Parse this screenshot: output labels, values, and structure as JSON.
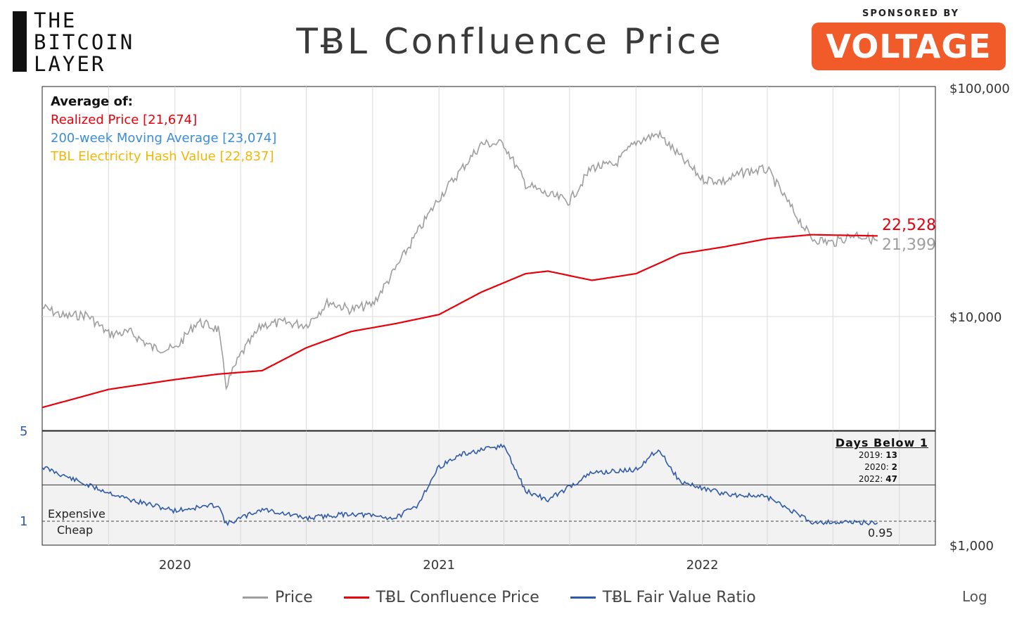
{
  "logo": {
    "lines": [
      "THE",
      "BITCOIN",
      "LAYER"
    ]
  },
  "title": "TɃL Confluence Price",
  "sponsor": {
    "label": "SPONSORED BY",
    "name": "VOLTAGE",
    "color": "#f15a29"
  },
  "average_box": {
    "heading": "Average of:",
    "items": [
      {
        "label": "Realized Price [21,674]",
        "color": "#e8000b"
      },
      {
        "label": "200-week Moving Average [23,074]",
        "color": "#3c8dd9"
      },
      {
        "label": "TBL Electricity Hash Value [22,837]",
        "color": "#f2b705"
      }
    ]
  },
  "days_below": {
    "title": "Days Below 1",
    "rows": [
      {
        "year": "2019:",
        "days": "13"
      },
      {
        "year": "2020:",
        "days": "2"
      },
      {
        "year": "2022:",
        "days": "47"
      }
    ]
  },
  "legend": [
    {
      "label": "Price",
      "color": "#9e9e9e"
    },
    {
      "label": "TɃL Confluence Price",
      "color": "#e8000b"
    },
    {
      "label": "TɃL Fair Value Ratio",
      "color": "#2f5aa8"
    }
  ],
  "scale_label": "Log",
  "chart_data": [
    {
      "type": "line",
      "scale": "log",
      "x_ticks": [
        "2020",
        "2021",
        "2022"
      ],
      "y_ticks": [
        "$100,000",
        "$10,000",
        "$1,000"
      ],
      "ylim": [
        1000,
        100000
      ],
      "series": [
        {
          "name": "Price",
          "color": "#9e9e9e",
          "x": [
            "2019-07",
            "2019-08",
            "2019-09",
            "2019-10",
            "2019-11",
            "2019-12",
            "2020-01",
            "2020-02",
            "2020-03",
            "2020-03-12",
            "2020-04",
            "2020-05",
            "2020-06",
            "2020-07",
            "2020-08",
            "2020-09",
            "2020-10",
            "2020-11",
            "2020-12",
            "2021-01",
            "2021-02",
            "2021-03",
            "2021-04",
            "2021-05",
            "2021-06",
            "2021-07",
            "2021-08",
            "2021-09",
            "2021-10",
            "2021-11",
            "2021-12",
            "2022-01",
            "2022-02",
            "2022-03",
            "2022-04",
            "2022-05",
            "2022-06",
            "2022-07",
            "2022-08",
            "2022-09"
          ],
          "values": [
            11000,
            10000,
            10200,
            8400,
            8500,
            7300,
            7200,
            9500,
            8800,
            5000,
            6800,
            9200,
            9400,
            9200,
            11600,
            10700,
            11300,
            16000,
            23000,
            33000,
            44000,
            57000,
            57000,
            38000,
            34000,
            32000,
            45000,
            46000,
            58000,
            63000,
            50000,
            40000,
            39000,
            43000,
            44000,
            31000,
            22000,
            21000,
            23000,
            21399
          ]
        },
        {
          "name": "TɃL Confluence Price",
          "color": "#e8000b",
          "x": [
            "2019-07",
            "2019-10",
            "2020-01",
            "2020-03",
            "2020-05",
            "2020-07",
            "2020-09",
            "2020-11",
            "2021-01",
            "2021-03",
            "2021-05",
            "2021-06",
            "2021-08",
            "2021-10",
            "2021-12",
            "2022-02",
            "2022-04",
            "2022-06",
            "2022-09"
          ],
          "values": [
            4000,
            4800,
            5300,
            5600,
            5800,
            7300,
            8600,
            9300,
            10200,
            12800,
            15400,
            15800,
            14400,
            15400,
            18800,
            20200,
            21900,
            22800,
            22528
          ]
        },
        {
          "name": "TɃL Fair Value Ratio",
          "color": "#2f5aa8",
          "x": [
            "2019-07",
            "2019-09",
            "2019-11",
            "2020-01",
            "2020-03",
            "2020-03-12",
            "2020-05",
            "2020-07",
            "2020-09",
            "2020-11",
            "2020-12",
            "2021-01",
            "2021-02",
            "2021-04",
            "2021-05",
            "2021-06",
            "2021-08",
            "2021-10",
            "2021-11",
            "2021-12",
            "2022-02",
            "2022-04",
            "2022-05",
            "2022-06",
            "2022-09"
          ],
          "values": [
            2.8,
            2.2,
            1.7,
            1.35,
            1.55,
            0.9,
            1.4,
            1.1,
            1.25,
            1.1,
            1.5,
            2.8,
            3.2,
            3.5,
            2.0,
            1.7,
            2.6,
            2.7,
            3.4,
            2.3,
            1.9,
            1.8,
            1.4,
            0.98,
            0.95
          ]
        }
      ],
      "labels": {
        "confluence_last": "22,528",
        "price_last": "21,399"
      }
    },
    {
      "type": "line",
      "y_ticks": [
        "5",
        "1"
      ],
      "reference_lines": [
        1,
        2.2
      ],
      "annotations": [
        "Expensive",
        "Cheap",
        "0.95"
      ]
    }
  ]
}
